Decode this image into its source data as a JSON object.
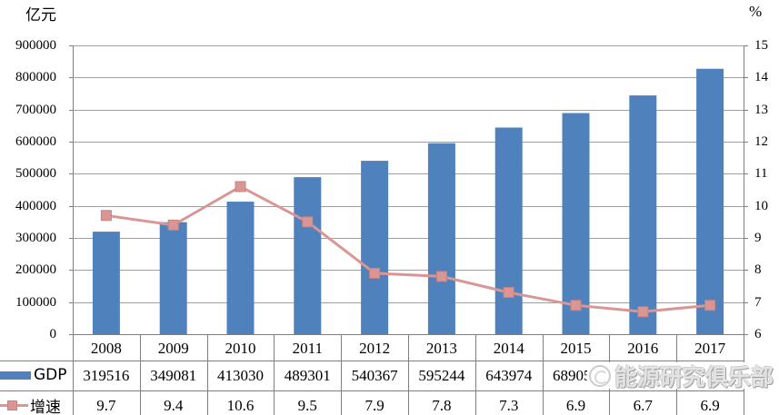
{
  "units": {
    "left_axis_unit": "亿元",
    "right_axis_unit": "%"
  },
  "legend": {
    "gdp_label": "GDP",
    "growth_label": "增速"
  },
  "watermark": {
    "text": "能源研究俱乐部"
  },
  "colors": {
    "bar": "#4f81bd",
    "line": "#d99694",
    "marker_border": "#c9827f",
    "gridline": "#a0a0a0",
    "table_border": "#7f7f7f",
    "text": "#000000",
    "watermark_text": "#cfcfcf"
  },
  "chart_data": {
    "type": "bar",
    "subtype": "combo-bar-line-with-data-table",
    "title": "",
    "categories": [
      "2008",
      "2009",
      "2010",
      "2011",
      "2012",
      "2013",
      "2014",
      "2015",
      "2016",
      "2017"
    ],
    "series": [
      {
        "name": "GDP",
        "type": "bar",
        "axis": "left",
        "color": "#4f81bd",
        "values": [
          319516,
          349081,
          413030,
          489301,
          540367,
          595244,
          643974,
          689052,
          744127,
          827122
        ]
      },
      {
        "name": "增速",
        "type": "line",
        "axis": "right",
        "color": "#d99694",
        "marker": "square",
        "values": [
          9.7,
          9.4,
          10.6,
          9.5,
          7.9,
          7.8,
          7.3,
          6.9,
          6.7,
          6.9
        ]
      }
    ],
    "left_axis": {
      "label": "亿元",
      "min": 0,
      "max": 900000,
      "step": 100000,
      "ticks": [
        "0",
        "100000",
        "200000",
        "300000",
        "400000",
        "500000",
        "600000",
        "700000",
        "800000",
        "900000"
      ]
    },
    "right_axis": {
      "label": "%",
      "min": 6,
      "max": 15,
      "step": 1,
      "ticks": [
        "6",
        "7",
        "8",
        "9",
        "10",
        "11",
        "12",
        "13",
        "14",
        "15"
      ]
    },
    "grid": true,
    "legend_position": "data-table-left",
    "data_table_shown": true,
    "table_note": "GDP values for 2015-2017 partially covered by watermark"
  }
}
